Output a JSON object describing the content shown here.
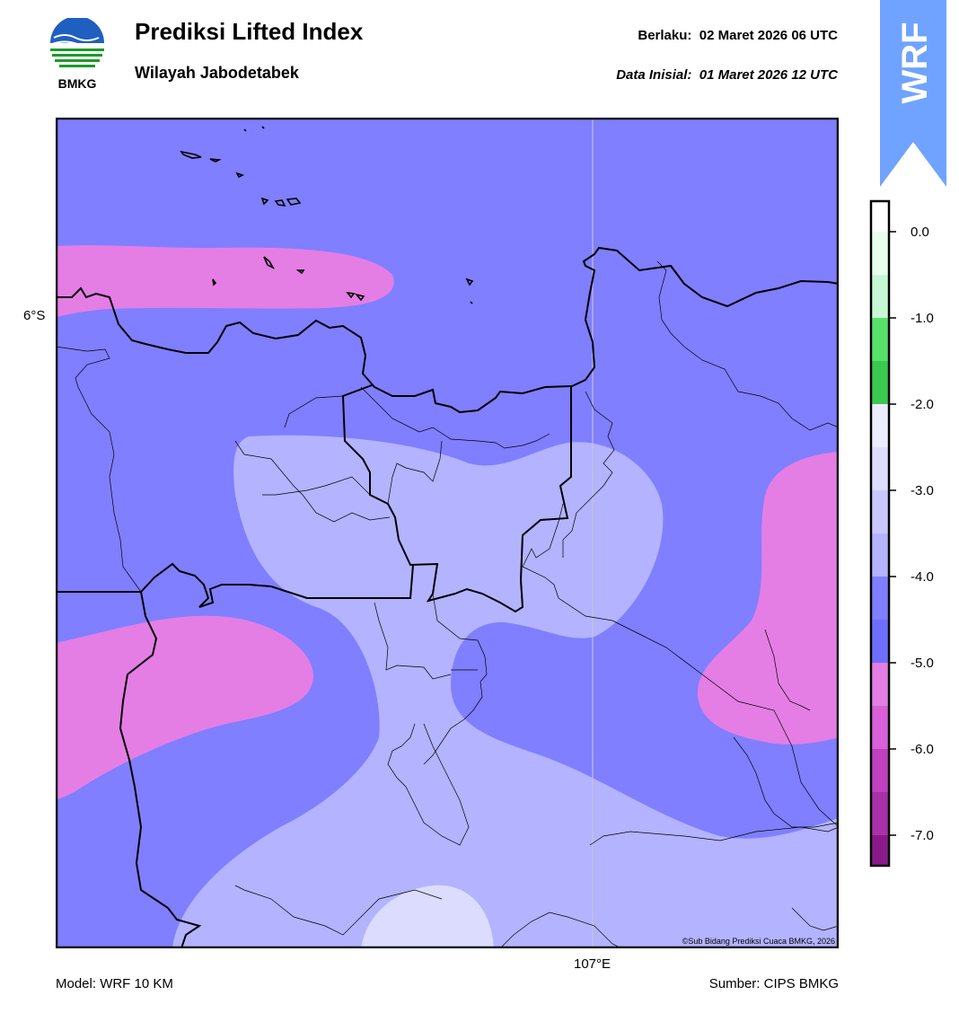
{
  "header": {
    "title": "Prediksi Lifted Index",
    "subtitle": "Wilayah Jabodetabek",
    "valid_label": "Berlaku:",
    "valid_time": "02 Maret 2026 06 UTC",
    "init_label": "Data Inisial:",
    "init_time": "01 Maret 2026 12 UTC"
  },
  "logo": {
    "text": "BMKG",
    "icon": "bmkg-logo-icon"
  },
  "badge": {
    "text": "WRF",
    "color": "#6fa3ff"
  },
  "map": {
    "lat_label": "6°S",
    "lon_label": "107°E",
    "copyright": "©Sub Bidang Prediksi Cuaca BMKG, 2026",
    "fill_colors": {
      "level_-6_-5": "#e47ee4",
      "level_-5_-4": "#7f7fff",
      "level_-4_-3": "#b3b3ff",
      "level_-3_-2": "#dcdcff"
    }
  },
  "colorbar": {
    "ticks": [
      "0.0",
      "-1.0",
      "-2.0",
      "-3.0",
      "-4.0",
      "-5.0",
      "-6.0",
      "-7.0"
    ],
    "segments": [
      {
        "value": 0.0,
        "color": "#e8ffee"
      },
      {
        "value": -0.5,
        "color": "#c6f7d4"
      },
      {
        "value": -1.0,
        "color": "#57e16b"
      },
      {
        "value": -1.5,
        "color": "#3ac94e"
      },
      {
        "value": -2.0,
        "color": "#ececff"
      },
      {
        "value": -2.5,
        "color": "#dcdcff"
      },
      {
        "value": -3.0,
        "color": "#c8c8ff"
      },
      {
        "value": -3.5,
        "color": "#b3b3ff"
      },
      {
        "value": -4.0,
        "color": "#7f7fff"
      },
      {
        "value": -4.5,
        "color": "#6f6fff"
      },
      {
        "value": -5.0,
        "color": "#e47ee4"
      },
      {
        "value": -5.5,
        "color": "#d860d8"
      },
      {
        "value": -6.0,
        "color": "#c040c0"
      },
      {
        "value": -6.5,
        "color": "#a830a8"
      },
      {
        "value": -7.0,
        "color": "#8a1a8a"
      }
    ]
  },
  "footer": {
    "model": "Model: WRF 10 KM",
    "source": "Sumber: CIPS BMKG"
  }
}
